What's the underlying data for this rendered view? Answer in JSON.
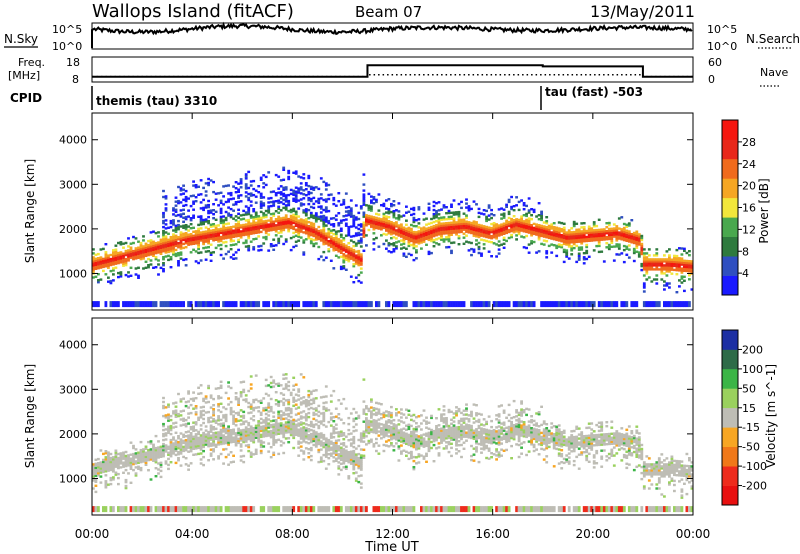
{
  "chart_data": {
    "type": "heatmap",
    "header": {
      "title": "Wallops Island (fitACF)",
      "beam": "Beam 07",
      "date": "13/May/2011"
    },
    "noise_panel": {
      "left_label": "N.Sky",
      "right_label": "N.Search",
      "y_ticks_left": [
        "10^5",
        "10^0"
      ],
      "y_ticks_right": [
        "10^5",
        "10^0"
      ]
    },
    "freq_panel": {
      "left_label_line1": "Freq.",
      "left_label_line2": "[MHz]",
      "right_label": "Nave",
      "y_ticks_left": [
        "18",
        "8"
      ],
      "y_ticks_right": [
        "60",
        "0"
      ],
      "steps": [
        {
          "start_hour": 0.0,
          "end_hour": 11.0,
          "freq_mhz": 10.3
        },
        {
          "start_hour": 11.0,
          "end_hour": 18.0,
          "freq_mhz": 15.3
        },
        {
          "start_hour": 18.0,
          "end_hour": 22.0,
          "freq_mhz": 14.8
        },
        {
          "start_hour": 22.0,
          "end_hour": 24.0,
          "freq_mhz": 10.3
        }
      ],
      "nave_steps": [
        {
          "start_hour": 0.0,
          "end_hour": 11.0,
          "nave": 14
        },
        {
          "start_hour": 11.0,
          "end_hour": 22.0,
          "nave": 19
        },
        {
          "start_hour": 22.0,
          "end_hour": 24.0,
          "nave": 14
        }
      ]
    },
    "cpid": {
      "label": "CPID",
      "segments": [
        {
          "start_hour": 0.0,
          "end_hour": 18.0,
          "text": "themis (tau) 3310"
        },
        {
          "start_hour": 18.0,
          "end_hour": 24.0,
          "text": "tau (fast) -503"
        }
      ]
    },
    "x_axis": {
      "label": "Time UT",
      "range_hours": [
        0,
        24
      ],
      "ticks": [
        {
          "hour": 0,
          "label": "00:00"
        },
        {
          "hour": 4,
          "label": "04:00"
        },
        {
          "hour": 8,
          "label": "08:00"
        },
        {
          "hour": 12,
          "label": "12:00"
        },
        {
          "hour": 16,
          "label": "16:00"
        },
        {
          "hour": 20,
          "label": "20:00"
        },
        {
          "hour": 24,
          "label": "00:00"
        }
      ]
    },
    "y_axis": {
      "label": "Slant Range [km]",
      "range_km": [
        180,
        4600
      ],
      "ticks": [
        1000,
        2000,
        3000,
        4000
      ]
    },
    "power_panel": {
      "colorbar_label": "Power [dB]",
      "colorbar_ticks": [
        "28",
        "24",
        "20",
        "16",
        "12",
        "8",
        "4"
      ],
      "colors": [
        "#1a1aff",
        "#2f4fc0",
        "#2e7a3e",
        "#49a84e",
        "#f2e73b",
        "#f5a623",
        "#f06b1d",
        "#e8281a",
        "#f5160f"
      ]
    },
    "velocity_panel": {
      "colorbar_label": "Velocity [m s^-1]",
      "colorbar_ticks": [
        "200",
        "100",
        "50",
        "15",
        "-15",
        "-50",
        "-100",
        "-200"
      ],
      "colors": [
        "#1c2fa3",
        "#2e6b48",
        "#3bb546",
        "#9ad15e",
        "#bebdb5",
        "#f7a623",
        "#f07819",
        "#ee2b1c",
        "#e81010"
      ]
    },
    "echo_band": {
      "description_points_hours": [
        0.3,
        1,
        2,
        3,
        4,
        5,
        6,
        7,
        8,
        9,
        10,
        10.9,
        11,
        12,
        13,
        14,
        15,
        16,
        17,
        18,
        19,
        20,
        21,
        21.9,
        22,
        23,
        24
      ],
      "center_km": [
        1200,
        1300,
        1450,
        1600,
        1750,
        1850,
        1950,
        2050,
        2150,
        1950,
        1600,
        1300,
        2200,
        2050,
        1800,
        2000,
        2050,
        1900,
        2100,
        1950,
        1800,
        1850,
        1900,
        1750,
        1200,
        1200,
        1150
      ]
    }
  }
}
